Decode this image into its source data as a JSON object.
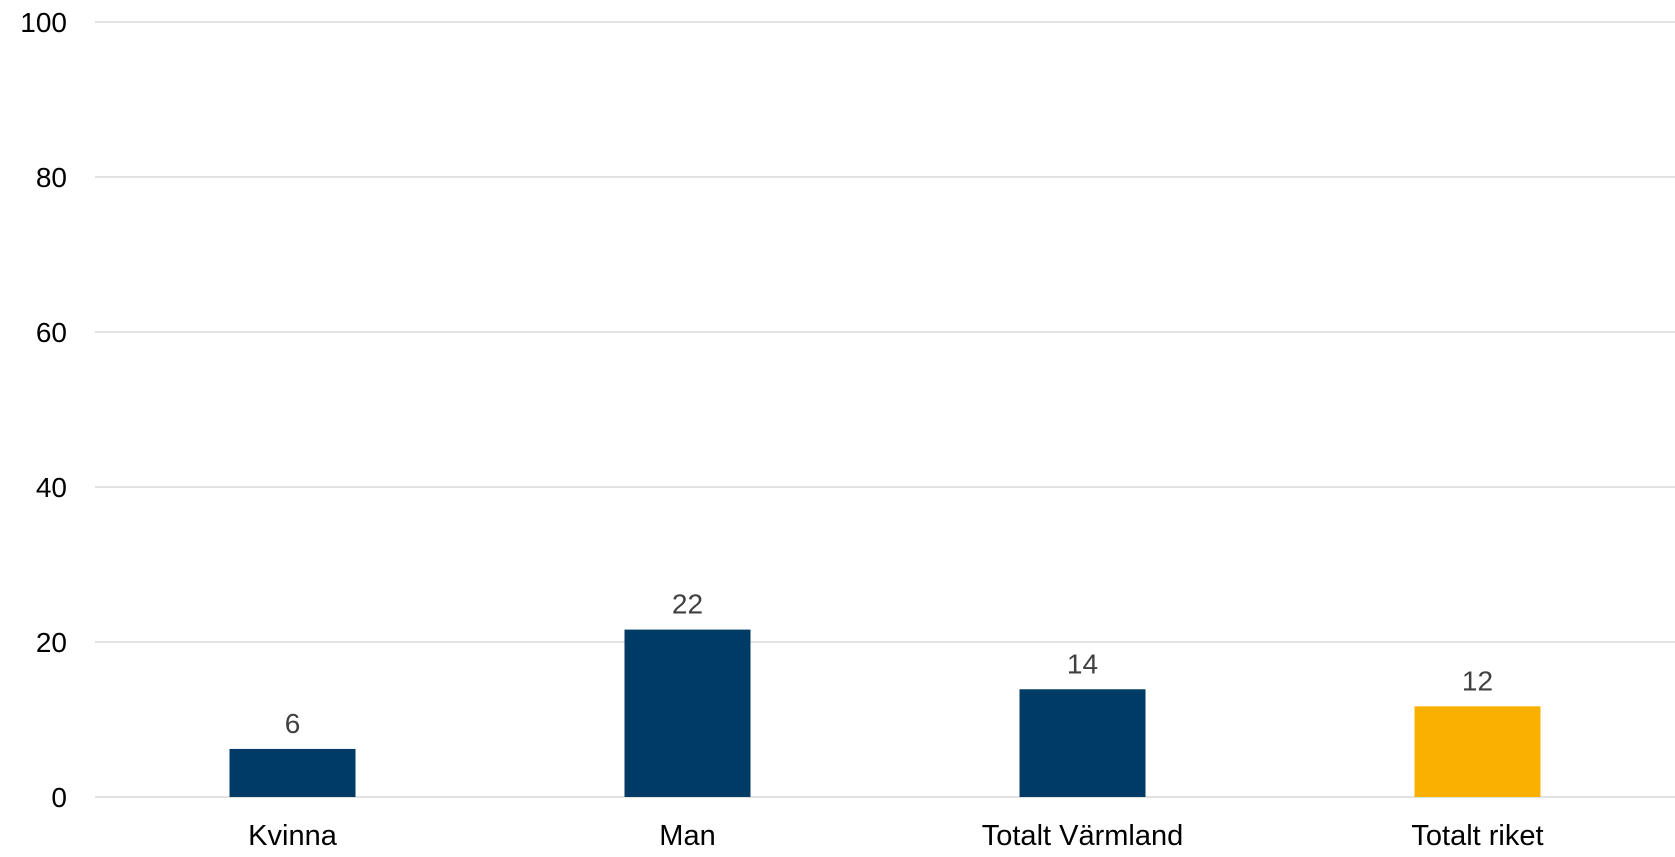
{
  "chart_data": {
    "type": "bar",
    "title": "",
    "xlabel": "",
    "ylabel": "",
    "categories": [
      "Kvinna",
      "Man",
      "Totalt Värmland",
      "Totalt riket"
    ],
    "values": [
      6.2,
      21.6,
      13.9,
      11.7
    ],
    "data_labels": [
      "6",
      "22",
      "14",
      "12"
    ],
    "bar_colors": [
      "#003B66",
      "#003B66",
      "#003B66",
      "#F9B000"
    ],
    "ylim": [
      0,
      100
    ],
    "yticks": [
      0,
      20,
      40,
      60,
      80,
      100
    ],
    "ytick_labels": [
      "0",
      "20",
      "40",
      "60",
      "80",
      "100"
    ],
    "grid": true,
    "gridline_color": "#D9D9D9",
    "tick_label_color": "#000000",
    "data_label_color": "#404040"
  }
}
